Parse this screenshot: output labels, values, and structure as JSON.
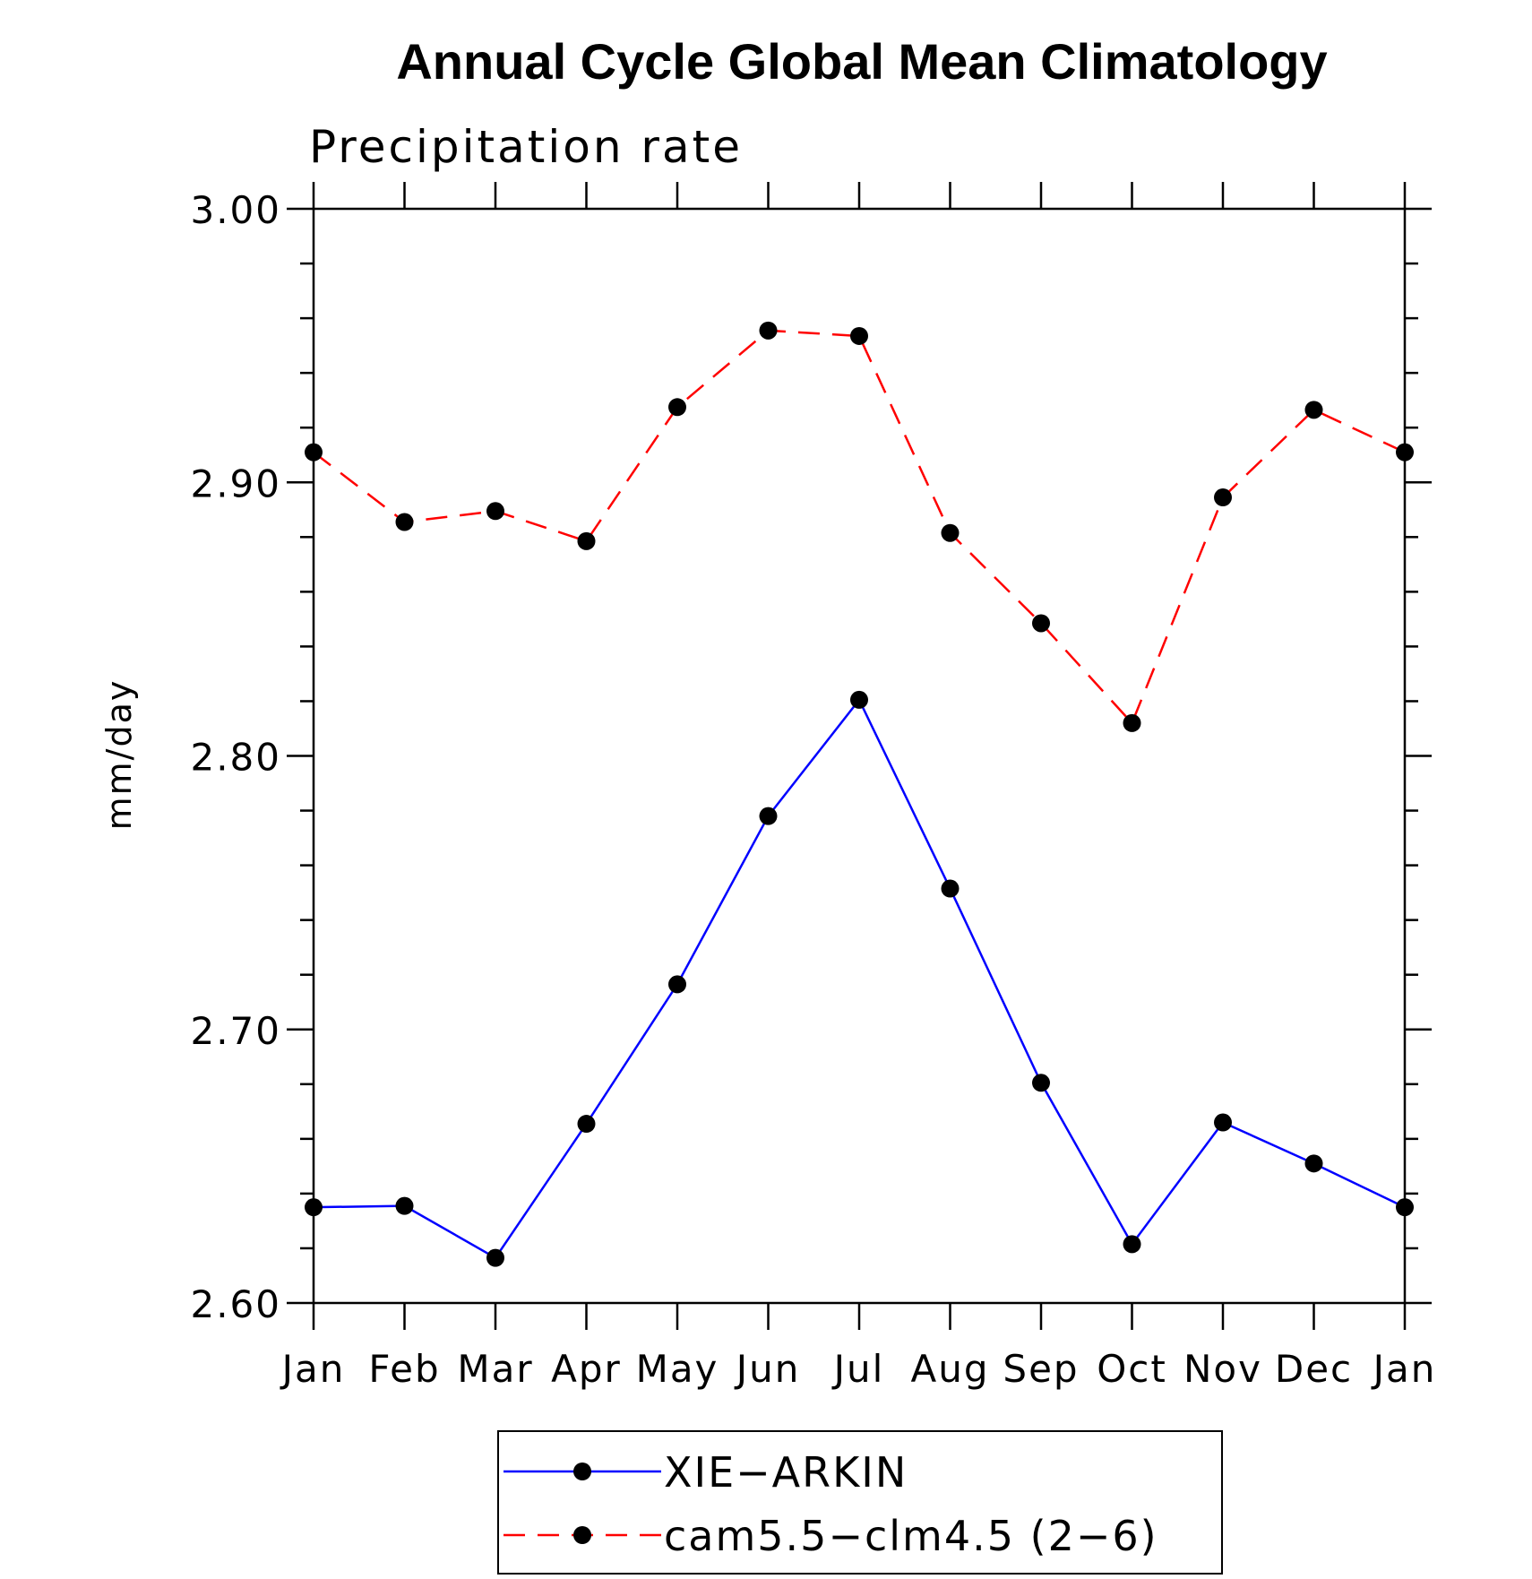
{
  "chart_data": {
    "type": "line",
    "title": "Annual Cycle Global Mean Climatology",
    "subtitle": "Precipitation rate",
    "xlabel": "",
    "ylabel": "mm/day",
    "categories": [
      "Jan",
      "Feb",
      "Mar",
      "Apr",
      "May",
      "Jun",
      "Jul",
      "Aug",
      "Sep",
      "Oct",
      "Nov",
      "Dec",
      "Jan"
    ],
    "ylim": [
      2.6,
      3.0
    ],
    "yticks": [
      "2.60",
      "2.70",
      "2.80",
      "2.90",
      "3.00"
    ],
    "grid": false,
    "legend_position": "bottom",
    "series": [
      {
        "name": "XIE−ARKIN",
        "color": "#0000ff",
        "line_style": "solid",
        "marker": "filled-circle",
        "values": [
          2.635,
          2.6355,
          2.6165,
          2.6655,
          2.7165,
          2.778,
          2.8205,
          2.7515,
          2.6805,
          2.6215,
          2.666,
          2.651,
          2.635
        ]
      },
      {
        "name": "cam5.5−clm4.5 (2−6)",
        "color": "#ff0000",
        "line_style": "dashed",
        "marker": "filled-circle",
        "values": [
          2.911,
          2.8855,
          2.8895,
          2.8785,
          2.9275,
          2.9555,
          2.9535,
          2.8815,
          2.8485,
          2.812,
          2.8945,
          2.9265,
          2.911
        ]
      }
    ]
  }
}
